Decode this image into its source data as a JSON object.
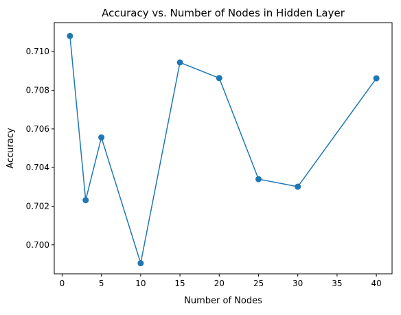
{
  "chart_data": {
    "type": "line",
    "title": "Accuracy vs. Number of Nodes in Hidden Layer",
    "xlabel": "Number of Nodes",
    "ylabel": "Accuracy",
    "x": [
      1,
      3,
      5,
      10,
      15,
      20,
      25,
      30,
      40
    ],
    "series": [
      {
        "values": [
          0.71081,
          0.70231,
          0.70556,
          0.69905,
          0.70944,
          0.70863,
          0.7034,
          0.70301,
          0.70862
        ],
        "color": "#1f77b4",
        "marker": "circle"
      }
    ],
    "xlim": [
      -1,
      42
    ],
    "ylim": [
      0.6985,
      0.7115
    ],
    "x_ticks": [
      0,
      5,
      10,
      15,
      20,
      25,
      30,
      35,
      40
    ],
    "x_tick_labels": [
      "0",
      "5",
      "10",
      "15",
      "20",
      "25",
      "30",
      "35",
      "40"
    ],
    "y_ticks": [
      0.7,
      0.702,
      0.704,
      0.706,
      0.708,
      0.71
    ],
    "y_tick_labels": [
      "0.700",
      "0.702",
      "0.704",
      "0.706",
      "0.708",
      "0.710"
    ],
    "grid": false,
    "legend": "none"
  }
}
